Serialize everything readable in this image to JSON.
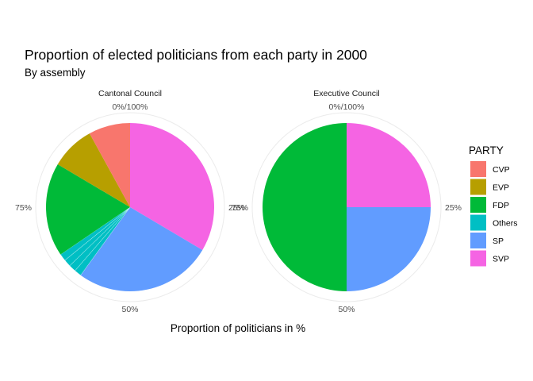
{
  "chart_data": {
    "type": "pie",
    "title": "Proportion of elected politicians from each party in 2000",
    "subtitle": "By assembly",
    "xlabel": "Proportion of politicians in %",
    "ylabel": "",
    "theta_ticks": [
      "0%/100%",
      "25%",
      "50%",
      "75%"
    ],
    "legend": {
      "title": "PARTY",
      "placement": "right",
      "entries": [
        {
          "name": "CVP",
          "color": "#F8766D"
        },
        {
          "name": "EVP",
          "color": "#B79F00"
        },
        {
          "name": "FDP",
          "color": "#00BA38"
        },
        {
          "name": "Others",
          "color": "#00BFC4"
        },
        {
          "name": "SP",
          "color": "#619CFF"
        },
        {
          "name": "SVP",
          "color": "#F564E3"
        }
      ]
    },
    "facets": [
      {
        "label": "Cantonal Council",
        "slices": [
          {
            "party": "SVP",
            "value": 33.5
          },
          {
            "party": "SP",
            "value": 26.5
          },
          {
            "party": "Others",
            "value": 5.5
          },
          {
            "party": "FDP",
            "value": 18.0
          },
          {
            "party": "EVP",
            "value": 8.5
          },
          {
            "party": "CVP",
            "value": 8.0
          }
        ],
        "others_segments": 4
      },
      {
        "label": "Executive Council",
        "slices": [
          {
            "party": "SVP",
            "value": 25
          },
          {
            "party": "SP",
            "value": 25
          },
          {
            "party": "FDP",
            "value": 50
          }
        ],
        "others_segments": 1
      }
    ]
  }
}
